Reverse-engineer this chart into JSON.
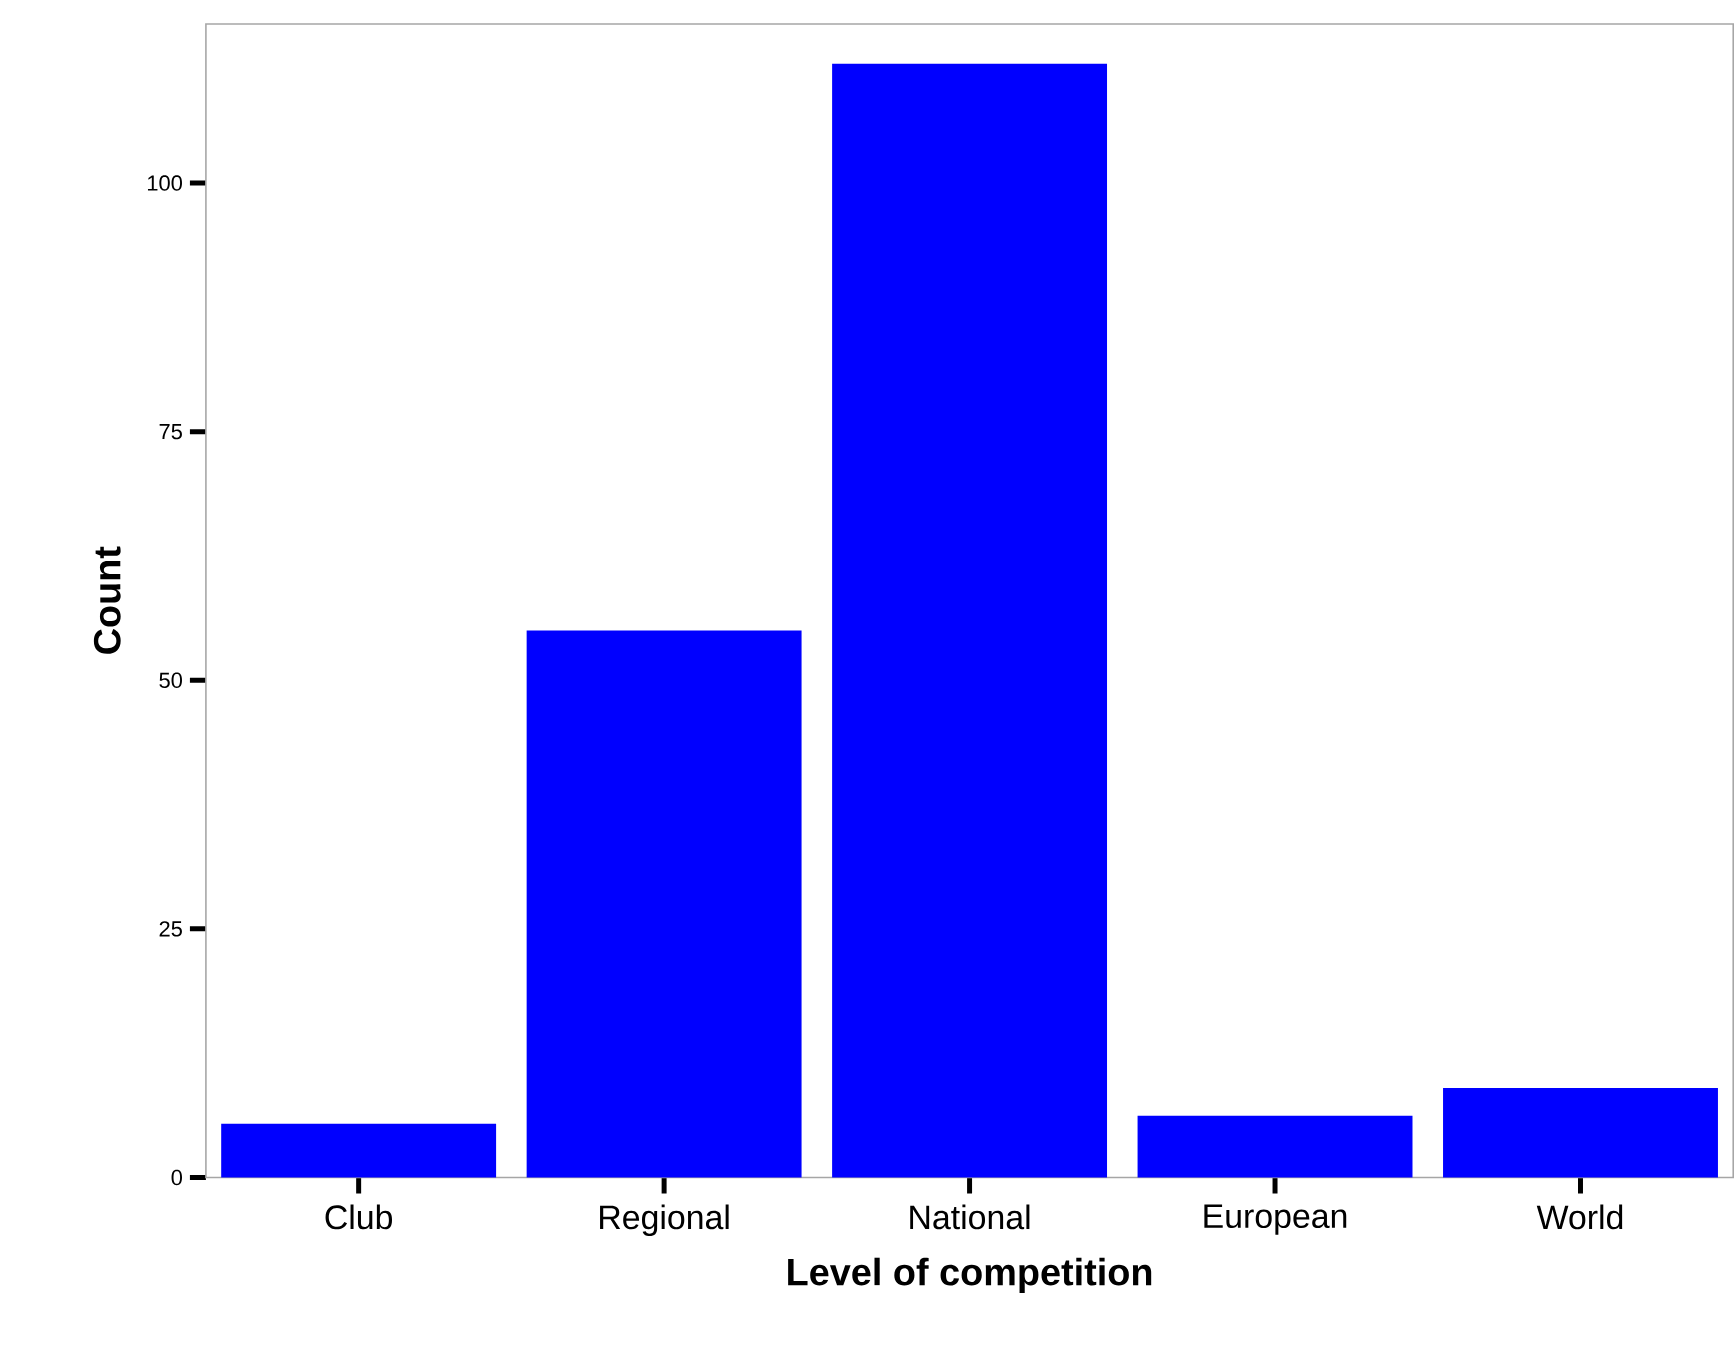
{
  "chart_data": {
    "type": "bar",
    "xlabel": "Level of competition",
    "ylabel": "Count",
    "categories": [
      "Club",
      "Regional",
      "National",
      "European",
      "World"
    ],
    "values": [
      5.4,
      55,
      112,
      6.2,
      9
    ],
    "color": "#0000ff",
    "ylim": [
      0,
      116
    ],
    "yticks": [
      0,
      25,
      50,
      75,
      100
    ],
    "grid": false
  }
}
